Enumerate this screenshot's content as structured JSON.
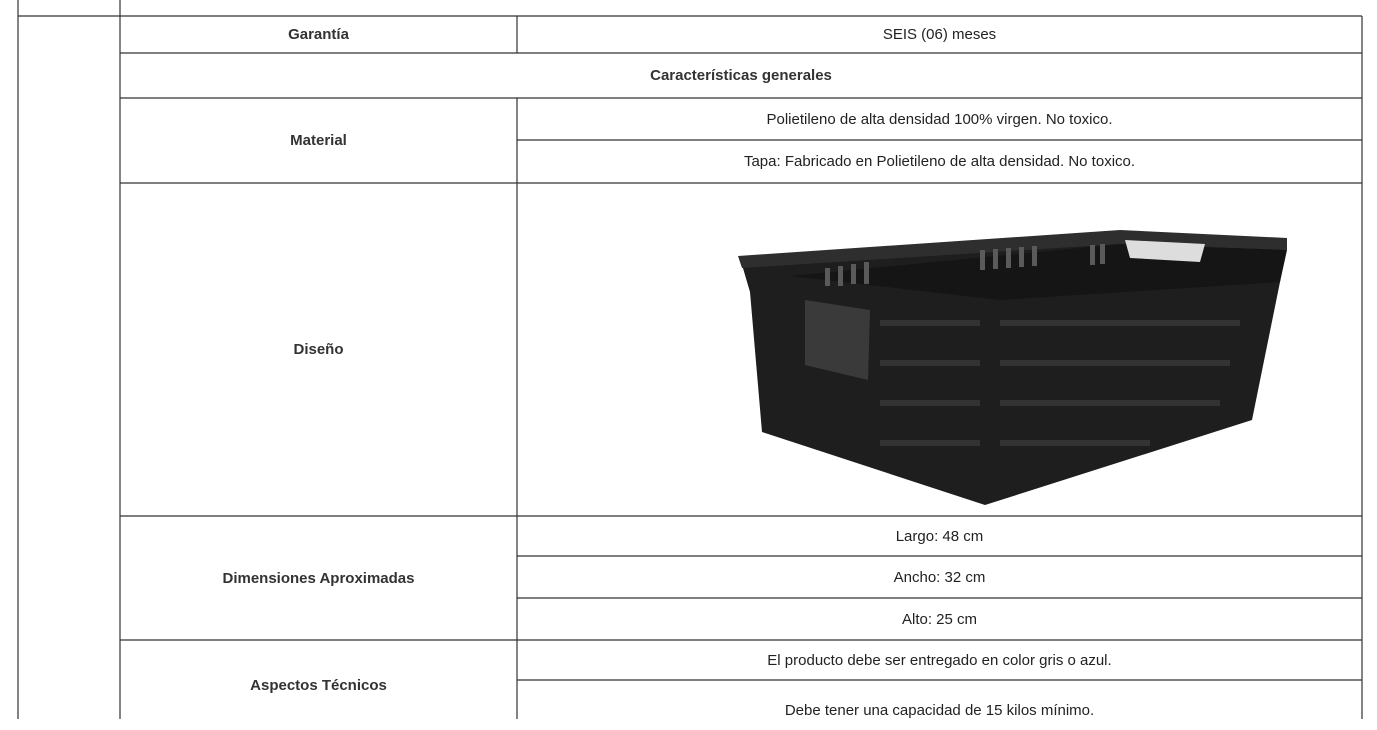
{
  "table": {
    "rows": [
      {
        "label": "Garantía",
        "values": [
          "SEIS (06) meses"
        ]
      },
      {
        "section": "Características generales"
      },
      {
        "label": "Material",
        "values": [
          "Polietileno de alta densidad 100% virgen. No toxico.",
          "Tapa: Fabricado en Polietileno de alta densidad. No toxico."
        ]
      },
      {
        "label": "Diseño"
      },
      {
        "label": "Dimensiones Aproximadas",
        "values": [
          "Largo: 48 cm",
          "Ancho: 32 cm",
          "Alto: 25 cm"
        ]
      },
      {
        "label": "Aspectos Técnicos",
        "values": [
          "El producto debe ser entregado en color gris o azul.",
          "Debe tener una capacidad de 15 kilos mínimo."
        ]
      }
    ]
  }
}
